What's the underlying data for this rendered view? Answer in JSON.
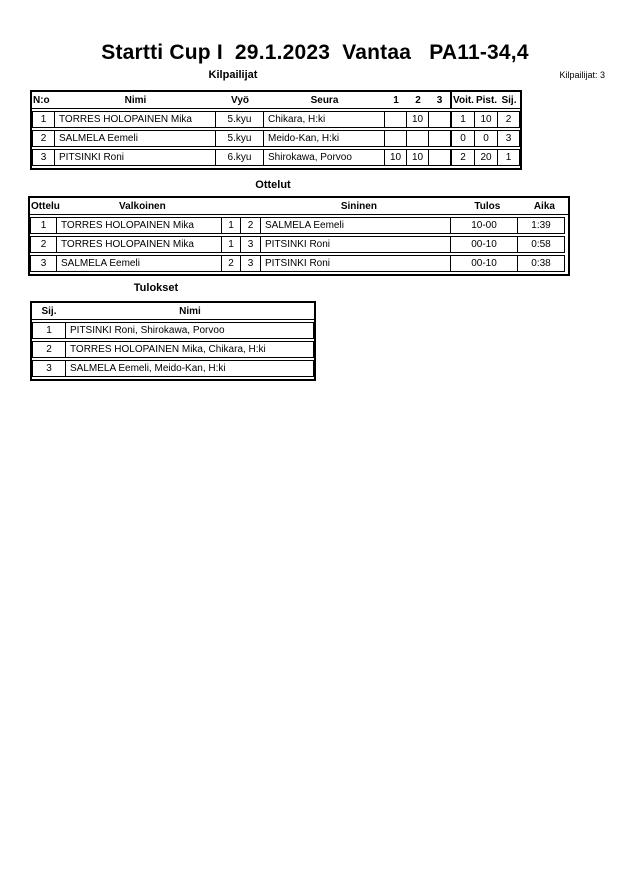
{
  "page": {
    "title": "Startti Cup I  29.1.2023  Vantaa   PA11-34,4",
    "competitor_count_label": "Kilpailijat: 3"
  },
  "kilpailijat": {
    "heading": "Kilpailijat",
    "headers": {
      "no": "N:o",
      "nimi": "Nimi",
      "vyo": "Vyö",
      "seura": "Seura",
      "c1": "1",
      "c2": "2",
      "c3": "3",
      "voit": "Voit.",
      "pist": "Pist.",
      "sij": "Sij."
    },
    "rows": [
      {
        "no": "1",
        "nimi": "TORRES HOLOPAINEN Mika",
        "vyo": "5.kyu",
        "seura": "Chikara, H:ki",
        "c1": "",
        "c2": "10",
        "c3": "",
        "voit": "1",
        "pist": "10",
        "sij": "2"
      },
      {
        "no": "2",
        "nimi": "SALMELA Eemeli",
        "vyo": "5.kyu",
        "seura": "Meido-Kan, H:ki",
        "c1": "",
        "c2": "",
        "c3": "",
        "voit": "0",
        "pist": "0",
        "sij": "3"
      },
      {
        "no": "3",
        "nimi": "PITSINKI Roni",
        "vyo": "6.kyu",
        "seura": "Shirokawa, Porvoo",
        "c1": "10",
        "c2": "10",
        "c3": "",
        "voit": "2",
        "pist": "20",
        "sij": "1"
      }
    ]
  },
  "ottelut": {
    "heading": "Ottelut",
    "headers": {
      "ottelu": "Ottelu",
      "valkoinen": "Valkoinen",
      "sininen": "Sininen",
      "tulos": "Tulos",
      "aika": "Aika"
    },
    "rows": [
      {
        "no": "1",
        "valkoinen": "TORRES HOLOPAINEN Mika",
        "wnum": "1",
        "bnum": "2",
        "sininen": "SALMELA Eemeli",
        "tulos": "10-00",
        "aika": "1:39"
      },
      {
        "no": "2",
        "valkoinen": "TORRES HOLOPAINEN Mika",
        "wnum": "1",
        "bnum": "3",
        "sininen": "PITSINKI Roni",
        "tulos": "00-10",
        "aika": "0:58"
      },
      {
        "no": "3",
        "valkoinen": "SALMELA Eemeli",
        "wnum": "2",
        "bnum": "3",
        "sininen": "PITSINKI Roni",
        "tulos": "00-10",
        "aika": "0:38"
      }
    ]
  },
  "tulokset": {
    "heading": "Tulokset",
    "headers": {
      "sij": "Sij.",
      "nimi": "Nimi"
    },
    "rows": [
      {
        "sij": "1",
        "nimi": "PITSINKI Roni, Shirokawa, Porvoo"
      },
      {
        "sij": "2",
        "nimi": "TORRES HOLOPAINEN Mika, Chikara, H:ki"
      },
      {
        "sij": "3",
        "nimi": "SALMELA Eemeli, Meido-Kan, H:ki"
      }
    ]
  }
}
